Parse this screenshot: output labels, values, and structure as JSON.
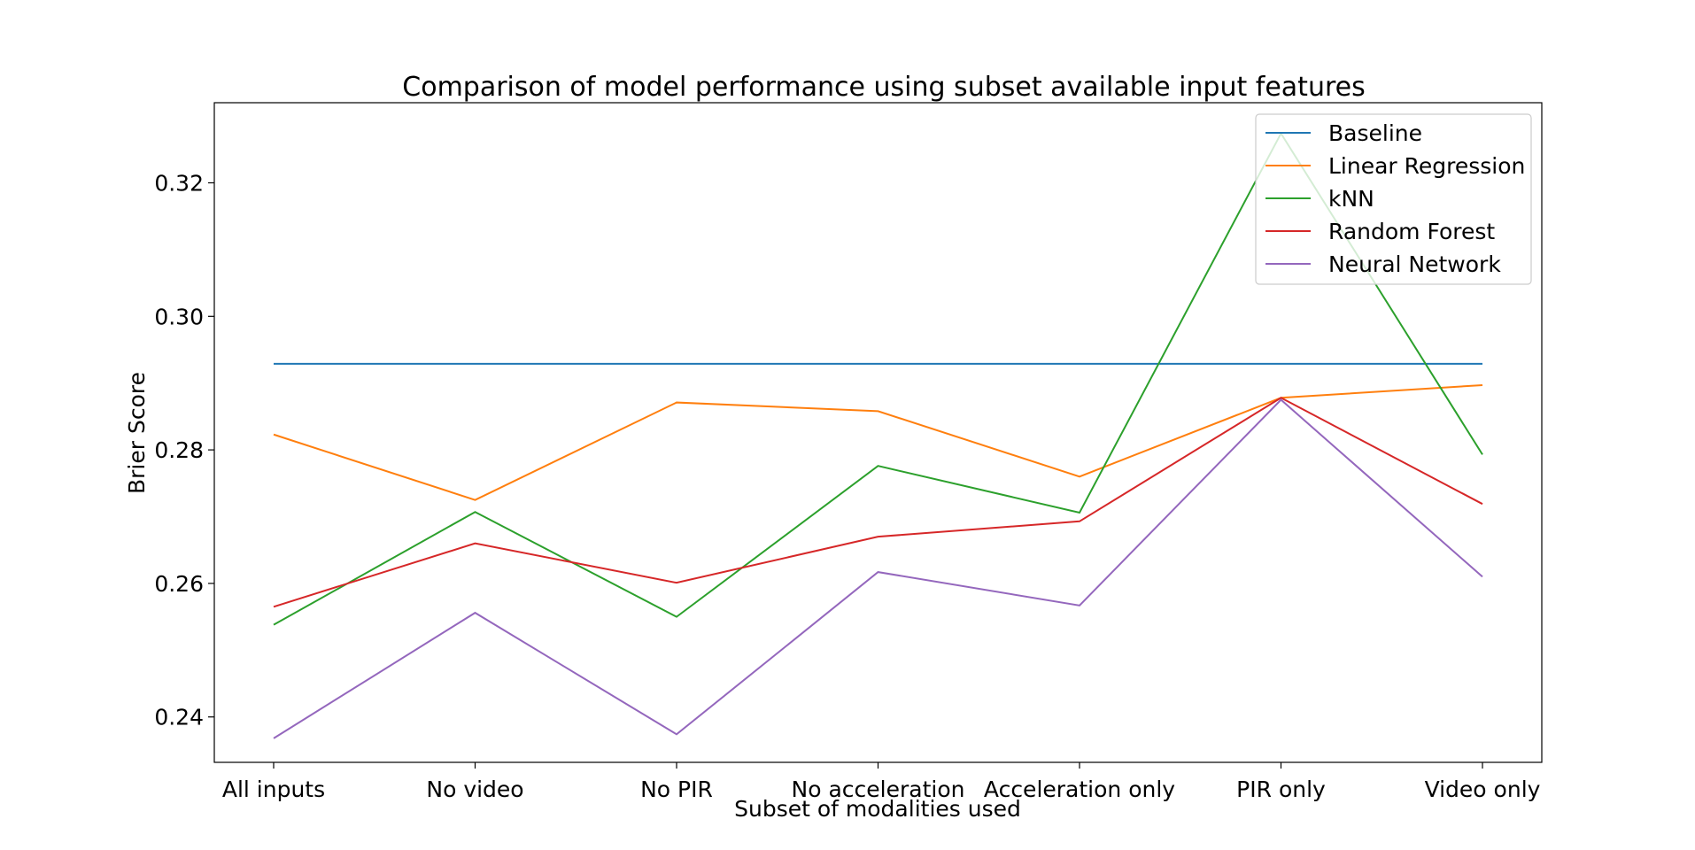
{
  "chart_data": {
    "type": "line",
    "title": "Comparison of model performance using subset available input features",
    "xlabel": "Subset of modalities used",
    "ylabel": "Brier Score",
    "categories": [
      "All inputs",
      "No video",
      "No PIR",
      "No acceleration",
      "Acceleration only",
      "PIR only",
      "Video only"
    ],
    "ylim": [
      0.2332,
      0.332
    ],
    "yticks": [
      0.24,
      0.26,
      0.28,
      0.3,
      0.32
    ],
    "ytick_labels": [
      "0.24",
      "0.26",
      "0.28",
      "0.30",
      "0.32"
    ],
    "grid": false,
    "legend_position": "top-right",
    "series": [
      {
        "name": "Baseline",
        "color": "#1f77b4",
        "values": [
          0.2929,
          0.2929,
          0.2929,
          0.2929,
          0.2929,
          0.2929,
          0.2929
        ]
      },
      {
        "name": "Linear Regression",
        "color": "#ff7f0e",
        "values": [
          0.2823,
          0.2725,
          0.2871,
          0.2858,
          0.276,
          0.2878,
          0.2897
        ]
      },
      {
        "name": "kNN",
        "color": "#2ca02c",
        "values": [
          0.2538,
          0.2707,
          0.255,
          0.2776,
          0.2706,
          0.3274,
          0.2793
        ]
      },
      {
        "name": "Random Forest",
        "color": "#d62728",
        "values": [
          0.2565,
          0.266,
          0.2601,
          0.267,
          0.2693,
          0.2878,
          0.2719
        ]
      },
      {
        "name": "Neural Network",
        "color": "#9467bd",
        "values": [
          0.2368,
          0.2556,
          0.2374,
          0.2617,
          0.2567,
          0.2875,
          0.261
        ]
      }
    ]
  }
}
